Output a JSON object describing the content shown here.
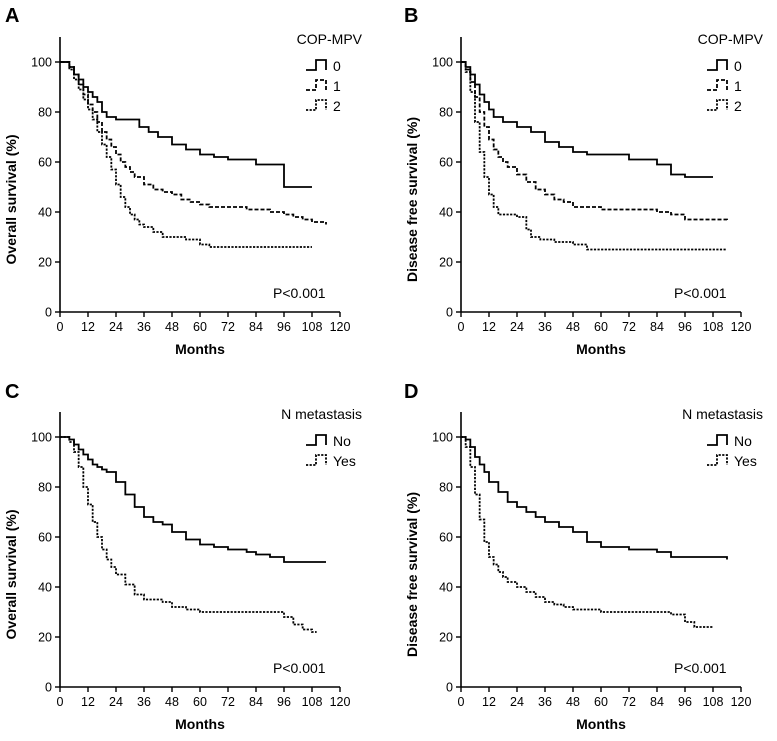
{
  "figure": {
    "panels": [
      {
        "letter": "A",
        "ylabel": "Overall survival (%)",
        "xlabel": "Months",
        "legend_title": "COP-MPV",
        "annotation": "P<0.001"
      },
      {
        "letter": "B",
        "ylabel": "Disease free survival (%)",
        "xlabel": "Months",
        "legend_title": "COP-MPV",
        "annotation": "P<0.001"
      },
      {
        "letter": "C",
        "ylabel": "Overall survival (%)",
        "xlabel": "Months",
        "legend_title": "N metastasis",
        "annotation": "P<0.001"
      },
      {
        "letter": "D",
        "ylabel": "Disease free survival (%)",
        "xlabel": "Months",
        "legend_title": "N metastasis",
        "annotation": "P<0.001"
      }
    ]
  },
  "chart_data": [
    {
      "type": "line",
      "panel": "A",
      "title": "",
      "xlabel": "Months",
      "ylabel": "Overall survival (%)",
      "xlim": [
        0,
        120
      ],
      "ylim": [
        0,
        110
      ],
      "xticks": [
        "0",
        "12",
        "24",
        "36",
        "48",
        "60",
        "72",
        "84",
        "96",
        "108",
        "120"
      ],
      "yticks": [
        "0",
        "20",
        "40",
        "60",
        "80",
        "100"
      ],
      "legend_title": "COP-MPV",
      "annotation": "P<0.001",
      "series": [
        {
          "name": "0",
          "dash": "solid",
          "x": [
            0,
            4,
            6,
            8,
            10,
            12,
            14,
            16,
            18,
            20,
            24,
            30,
            34,
            38,
            42,
            48,
            54,
            60,
            66,
            72,
            84,
            96,
            108
          ],
          "y": [
            100,
            98,
            95,
            93,
            90,
            88,
            86,
            84,
            80,
            78,
            77,
            77,
            74,
            72,
            70,
            67,
            65,
            63,
            62,
            61,
            59,
            50,
            50
          ]
        },
        {
          "name": "1",
          "dash": "dashed",
          "x": [
            0,
            4,
            6,
            8,
            10,
            12,
            14,
            16,
            18,
            20,
            22,
            24,
            26,
            28,
            30,
            32,
            36,
            40,
            44,
            48,
            52,
            56,
            60,
            64,
            72,
            80,
            90,
            96,
            100,
            104,
            108,
            114
          ],
          "y": [
            100,
            98,
            95,
            91,
            87,
            83,
            80,
            76,
            72,
            69,
            66,
            63,
            60,
            58,
            56,
            54,
            51,
            49,
            48,
            47,
            45,
            44,
            43,
            42,
            42,
            41,
            40,
            39,
            38,
            37,
            36,
            35
          ]
        },
        {
          "name": "2",
          "dash": "dotted",
          "x": [
            0,
            4,
            6,
            8,
            10,
            12,
            14,
            16,
            18,
            20,
            22,
            24,
            26,
            28,
            30,
            32,
            34,
            36,
            40,
            44,
            48,
            54,
            60,
            64,
            72,
            84,
            96,
            108
          ],
          "y": [
            100,
            97,
            93,
            89,
            85,
            81,
            77,
            72,
            67,
            62,
            57,
            51,
            46,
            42,
            39,
            37,
            35,
            34,
            32,
            30,
            30,
            29,
            27,
            26,
            26,
            26,
            26,
            26
          ]
        }
      ]
    },
    {
      "type": "line",
      "panel": "B",
      "title": "",
      "xlabel": "Months",
      "ylabel": "Disease free survival (%)",
      "xlim": [
        0,
        120
      ],
      "ylim": [
        0,
        110
      ],
      "xticks": [
        "0",
        "12",
        "24",
        "36",
        "48",
        "60",
        "72",
        "84",
        "96",
        "108",
        "120"
      ],
      "yticks": [
        "0",
        "20",
        "40",
        "60",
        "80",
        "100"
      ],
      "legend_title": "COP-MPV",
      "annotation": "P<0.001",
      "series": [
        {
          "name": "0",
          "dash": "solid",
          "x": [
            0,
            2,
            4,
            6,
            8,
            10,
            12,
            14,
            18,
            24,
            30,
            36,
            42,
            48,
            54,
            60,
            72,
            84,
            90,
            96,
            108
          ],
          "y": [
            100,
            98,
            95,
            91,
            87,
            84,
            81,
            78,
            76,
            74,
            72,
            68,
            66,
            64,
            63,
            63,
            61,
            59,
            55,
            54,
            54
          ]
        },
        {
          "name": "1",
          "dash": "dashed",
          "x": [
            0,
            2,
            4,
            6,
            8,
            10,
            12,
            14,
            16,
            18,
            20,
            24,
            28,
            32,
            36,
            40,
            44,
            48,
            54,
            60,
            72,
            84,
            90,
            96,
            104,
            108,
            114
          ],
          "y": [
            100,
            97,
            92,
            86,
            80,
            74,
            69,
            65,
            62,
            60,
            58,
            55,
            52,
            49,
            47,
            45,
            44,
            42,
            42,
            41,
            41,
            40,
            39,
            37,
            37,
            37,
            36
          ]
        },
        {
          "name": "2",
          "dash": "dotted",
          "x": [
            0,
            2,
            4,
            6,
            8,
            10,
            12,
            14,
            16,
            18,
            24,
            28,
            30,
            34,
            40,
            48,
            54,
            60,
            72,
            84,
            96,
            108,
            114
          ],
          "y": [
            100,
            96,
            88,
            76,
            64,
            54,
            47,
            42,
            39,
            39,
            38,
            33,
            30,
            29,
            28,
            27,
            25,
            25,
            25,
            25,
            25,
            25,
            25
          ]
        }
      ]
    },
    {
      "type": "line",
      "panel": "C",
      "title": "",
      "xlabel": "Months",
      "ylabel": "Overall survival (%)",
      "xlim": [
        0,
        120
      ],
      "ylim": [
        0,
        110
      ],
      "xticks": [
        "0",
        "12",
        "24",
        "36",
        "48",
        "60",
        "72",
        "84",
        "96",
        "108",
        "120"
      ],
      "yticks": [
        "0",
        "20",
        "40",
        "60",
        "80",
        "100"
      ],
      "legend_title": "N metastasis",
      "annotation": "P<0.001",
      "series": [
        {
          "name": "No",
          "dash": "solid",
          "x": [
            0,
            4,
            6,
            8,
            10,
            12,
            14,
            16,
            18,
            20,
            24,
            28,
            32,
            36,
            40,
            44,
            48,
            54,
            60,
            66,
            72,
            80,
            84,
            90,
            96,
            108,
            114
          ],
          "y": [
            100,
            99,
            97,
            95,
            93,
            91,
            89,
            88,
            87,
            86,
            82,
            77,
            72,
            68,
            66,
            65,
            62,
            59,
            57,
            56,
            55,
            54,
            53,
            52,
            50,
            50,
            50
          ]
        },
        {
          "name": "Yes",
          "dash": "dotted",
          "x": [
            0,
            4,
            6,
            8,
            10,
            12,
            14,
            16,
            18,
            20,
            22,
            24,
            28,
            32,
            36,
            40,
            44,
            48,
            54,
            60,
            66,
            72,
            84,
            96,
            100,
            104,
            108,
            110
          ],
          "y": [
            100,
            98,
            94,
            88,
            80,
            73,
            66,
            60,
            55,
            51,
            48,
            45,
            41,
            37,
            35,
            35,
            34,
            32,
            31,
            30,
            30,
            30,
            30,
            28,
            25,
            23,
            22,
            22
          ]
        }
      ]
    },
    {
      "type": "line",
      "panel": "D",
      "title": "",
      "xlabel": "Months",
      "ylabel": "Disease free survival (%)",
      "xlim": [
        0,
        120
      ],
      "ylim": [
        0,
        110
      ],
      "xticks": [
        "0",
        "12",
        "24",
        "36",
        "48",
        "60",
        "72",
        "84",
        "96",
        "108",
        "120"
      ],
      "yticks": [
        "0",
        "20",
        "40",
        "60",
        "80",
        "100"
      ],
      "legend_title": "N metastasis",
      "annotation": "P<0.001",
      "series": [
        {
          "name": "No",
          "dash": "solid",
          "x": [
            0,
            2,
            4,
            6,
            8,
            10,
            12,
            16,
            20,
            24,
            28,
            32,
            36,
            42,
            48,
            54,
            60,
            72,
            84,
            90,
            96,
            108,
            114
          ],
          "y": [
            100,
            99,
            96,
            92,
            89,
            86,
            82,
            78,
            74,
            72,
            70,
            68,
            66,
            64,
            62,
            58,
            56,
            55,
            54,
            52,
            52,
            52,
            51
          ]
        },
        {
          "name": "Yes",
          "dash": "dotted",
          "x": [
            0,
            2,
            4,
            6,
            8,
            10,
            12,
            14,
            16,
            18,
            20,
            24,
            28,
            32,
            36,
            40,
            44,
            48,
            54,
            60,
            72,
            84,
            90,
            96,
            100,
            108
          ],
          "y": [
            100,
            96,
            88,
            77,
            67,
            58,
            52,
            49,
            46,
            44,
            42,
            40,
            38,
            36,
            34,
            33,
            32,
            31,
            31,
            30,
            30,
            30,
            29,
            26,
            24,
            24
          ]
        }
      ]
    }
  ]
}
